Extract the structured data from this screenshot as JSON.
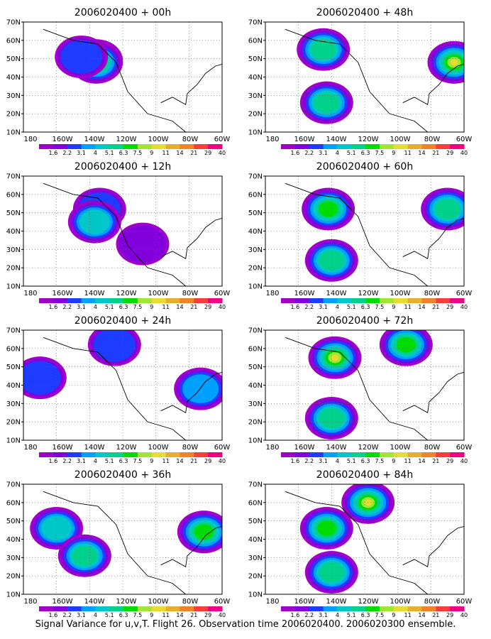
{
  "caption": "Signal Variance for u,v,T. Flight 26. Observation time 2006020400. 2006020300 ensemble.",
  "colorbar": {
    "labels": [
      "1.6",
      "2.2",
      "3.1",
      "4",
      "5.1",
      "6.3",
      "7.5",
      "9",
      "11",
      "14",
      "21",
      "29",
      "40"
    ],
    "colors": [
      "#a000c8",
      "#8200dc",
      "#1e3cff",
      "#00a0ff",
      "#00c8c8",
      "#00d28c",
      "#00dc00",
      "#a0e632",
      "#e6dc32",
      "#e6af2d",
      "#f08228",
      "#fa3c3c",
      "#f00082"
    ]
  },
  "axes": {
    "ylabels": [
      "70N",
      "60N",
      "50N",
      "40N",
      "30N",
      "20N",
      "10N"
    ],
    "xlabels": [
      "180",
      "160W",
      "140W",
      "120W",
      "100W",
      "80W",
      "60W"
    ]
  },
  "chart_data": [
    {
      "type": "heatmap",
      "title": "2006020400 + 00h",
      "xlim": [
        "180",
        "60W"
      ],
      "ylim": [
        "10N",
        "70N"
      ],
      "blobs": [
        {
          "lon": -136,
          "lat": 49,
          "level": 3
        },
        {
          "lon": -136,
          "lat": 48,
          "level": 6
        },
        {
          "lon": -145,
          "lat": 51,
          "level": 2
        }
      ]
    },
    {
      "type": "heatmap",
      "title": "2006020400 + 12h",
      "xlim": [
        "180",
        "60W"
      ],
      "ylim": [
        "10N",
        "70N"
      ],
      "blobs": [
        {
          "lon": -134,
          "lat": 52,
          "level": 2
        },
        {
          "lon": -137,
          "lat": 45,
          "level": 4
        },
        {
          "lon": -108,
          "lat": 33,
          "level": 1
        }
      ]
    },
    {
      "type": "heatmap",
      "title": "2006020400 + 24h",
      "xlim": [
        "180",
        "60W"
      ],
      "ylim": [
        "10N",
        "70N"
      ],
      "blobs": [
        {
          "lon": -170,
          "lat": 44,
          "level": 2
        },
        {
          "lon": -125,
          "lat": 62,
          "level": 2
        },
        {
          "lon": -73,
          "lat": 38,
          "level": 3
        }
      ]
    },
    {
      "type": "heatmap",
      "title": "2006020400 + 36h",
      "xlim": [
        "180",
        "60W"
      ],
      "ylim": [
        "10N",
        "70N"
      ],
      "blobs": [
        {
          "lon": -160,
          "lat": 46,
          "level": 4
        },
        {
          "lon": -143,
          "lat": 31,
          "level": 5
        },
        {
          "lon": -71,
          "lat": 44,
          "level": 6
        }
      ]
    },
    {
      "type": "heatmap",
      "title": "2006020400 + 48h",
      "xlim": [
        "180",
        "60W"
      ],
      "ylim": [
        "10N",
        "70N"
      ],
      "blobs": [
        {
          "lon": -145,
          "lat": 55,
          "level": 5
        },
        {
          "lon": -143,
          "lat": 26,
          "level": 5
        },
        {
          "lon": -66,
          "lat": 48,
          "level": 8
        }
      ]
    },
    {
      "type": "heatmap",
      "title": "2006020400 + 60h",
      "xlim": [
        "180",
        "60W"
      ],
      "ylim": [
        "10N",
        "70N"
      ],
      "blobs": [
        {
          "lon": -142,
          "lat": 52,
          "level": 6
        },
        {
          "lon": -140,
          "lat": 24,
          "level": 5
        },
        {
          "lon": -70,
          "lat": 52,
          "level": 5
        }
      ]
    },
    {
      "type": "heatmap",
      "title": "2006020400 + 72h",
      "xlim": [
        "180",
        "60W"
      ],
      "ylim": [
        "10N",
        "70N"
      ],
      "blobs": [
        {
          "lon": -138,
          "lat": 55,
          "level": 8
        },
        {
          "lon": -140,
          "lat": 22,
          "level": 5
        },
        {
          "lon": -95,
          "lat": 62,
          "level": 6
        }
      ]
    },
    {
      "type": "heatmap",
      "title": "2006020400 + 84h",
      "xlim": [
        "180",
        "60W"
      ],
      "ylim": [
        "10N",
        "70N"
      ],
      "blobs": [
        {
          "lon": -118,
          "lat": 60,
          "level": 8
        },
        {
          "lon": -143,
          "lat": 46,
          "level": 6
        },
        {
          "lon": -140,
          "lat": 22,
          "level": 5
        }
      ]
    }
  ]
}
